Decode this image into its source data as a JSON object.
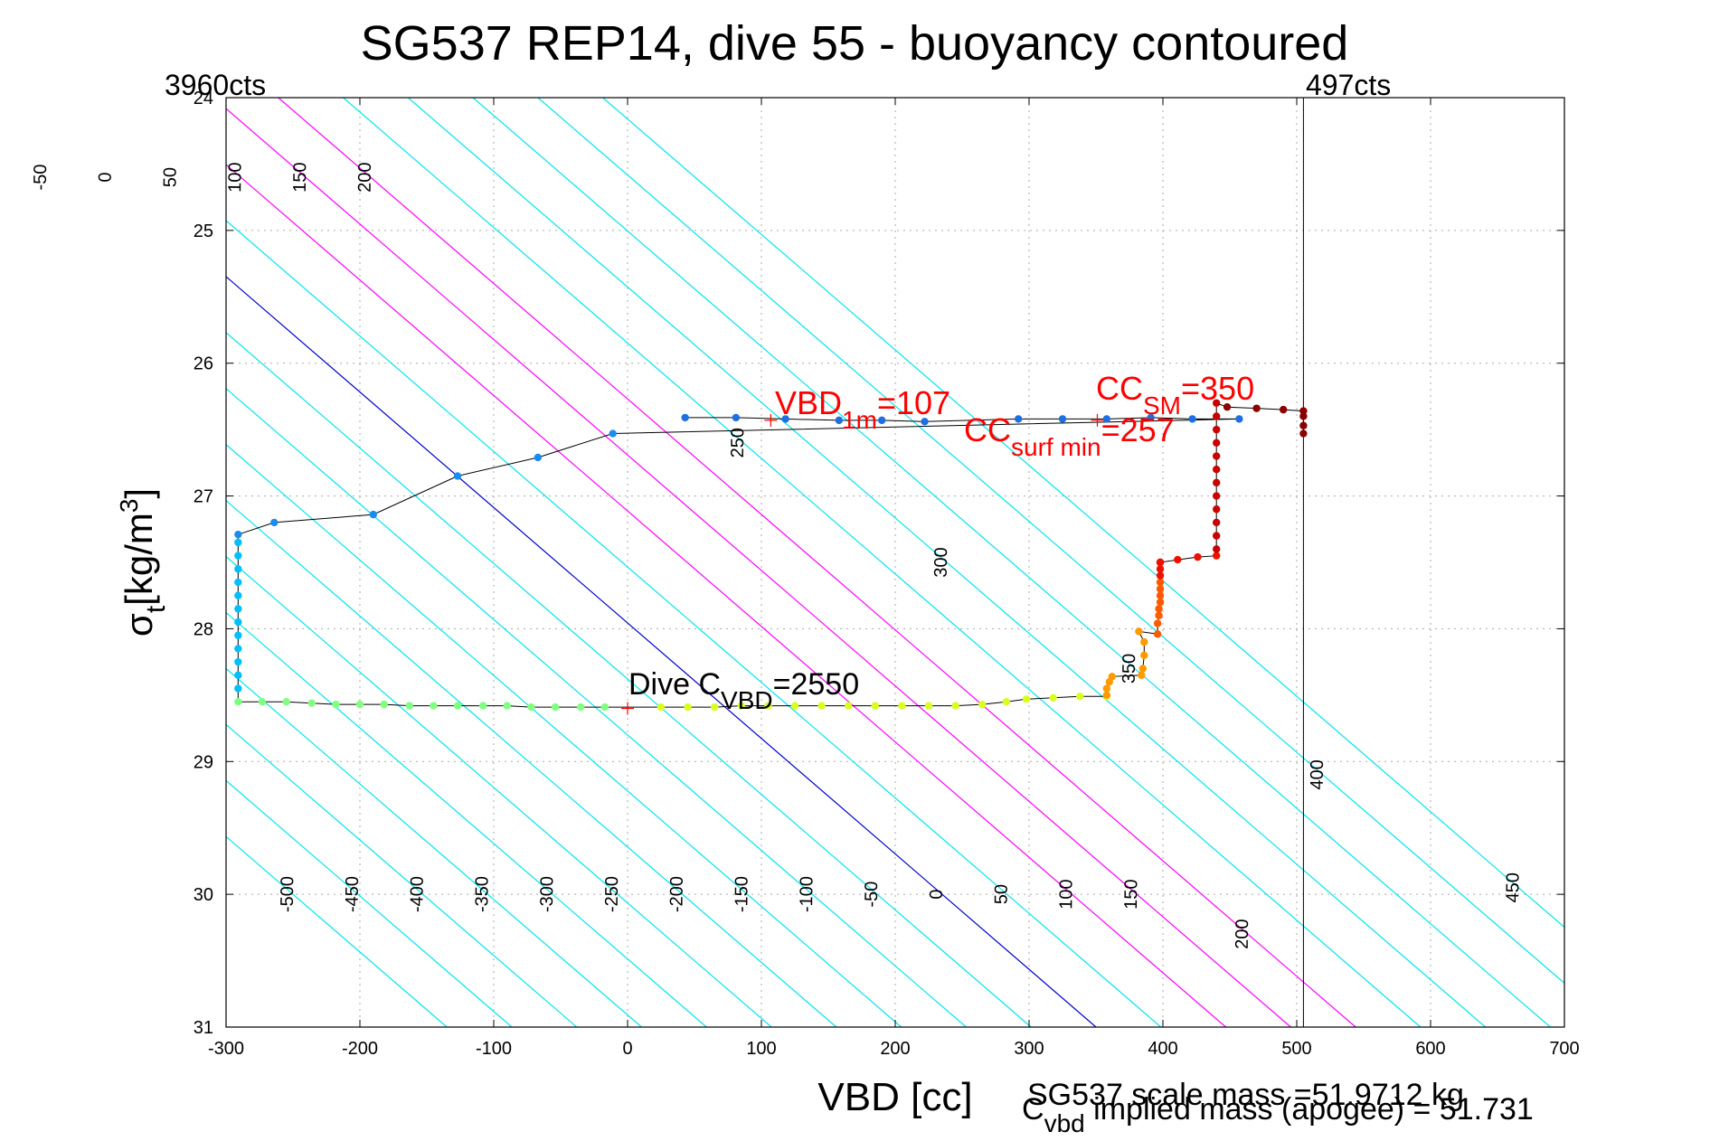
{
  "chart_data": {
    "type": "scatter",
    "title": "SG537 REP14, dive 55 - buoyancy contoured",
    "xlabel": "VBD [cc]",
    "ylabel_main": "σ",
    "ylabel_sub": "t",
    "ylabel_unit": "[kg/m",
    "ylabel_sup": "3",
    "ylabel_close": "]",
    "xlim": [
      -300,
      700
    ],
    "ylim": [
      24,
      31
    ],
    "y_reversed": true,
    "grid": true,
    "x_ticks": [
      -300,
      -200,
      -100,
      0,
      100,
      200,
      300,
      400,
      500,
      600,
      700
    ],
    "y_ticks": [
      24,
      25,
      26,
      27,
      28,
      29,
      30,
      31
    ],
    "corner_labels": {
      "left": "3960cts",
      "right": "497cts"
    },
    "vertical_line_x": 505,
    "colors": {
      "contour": "#00e5ee",
      "zero_contour": "#0000cc",
      "magenta_contour": "#ff00ff",
      "annotation": "#ff0000",
      "grid": "#aaaaaa"
    },
    "contour_levels": [
      -500,
      -450,
      -400,
      -350,
      -300,
      -250,
      -200,
      -150,
      -100,
      -50,
      0,
      50,
      100,
      150,
      200,
      250,
      300,
      350,
      400,
      450
    ],
    "zero_contour_level": 0,
    "magenta_contour_levels": [
      100,
      150,
      200
    ],
    "top_contour_labels": [
      -500,
      -450,
      -400,
      -350,
      -300,
      -250,
      -200,
      -150,
      -100,
      -50,
      0,
      50,
      100,
      150,
      200
    ],
    "bottom_contour_labels": [
      -500,
      -450,
      -400,
      -350,
      -300,
      -250,
      -200,
      -150,
      -100,
      -50,
      0,
      50,
      100,
      150,
      200
    ],
    "right_contour_labels": [
      250,
      300,
      350,
      400,
      450
    ],
    "annotations": {
      "vbd1m": {
        "main": "VBD",
        "sub": "1m",
        "rest": "=107",
        "x": 107,
        "y": 26.43
      },
      "ccsm": {
        "main": "CC",
        "sub": "SM",
        "rest": "=350",
        "x": 440,
        "y": 26.36
      },
      "ccsurf": {
        "main": "CC",
        "sub": "surf min",
        "rest": "=257",
        "x": 351,
        "y": 26.43
      },
      "divec": {
        "main": "Dive C",
        "sub": "VBD",
        "rest": "=2550",
        "x": 0,
        "y": 28.6
      }
    },
    "footer": {
      "scale_mass": "SG537 scale mass =51.9712 kg",
      "implied_main": "C",
      "implied_sub": "vbd",
      "implied_rest": " implied mass (apogee) = 51.731"
    },
    "series": [
      {
        "color": "#1e6fe0",
        "x": [
          43,
          81,
          118,
          158,
          190,
          222,
          292,
          325,
          358,
          391,
          422,
          457
        ],
        "y": [
          26.41,
          26.41,
          26.42,
          26.43,
          26.43,
          26.44,
          26.42,
          26.42,
          26.42,
          26.41,
          26.42,
          26.42
        ]
      },
      {
        "color": "#1a8cf0",
        "x": [
          -11,
          -67,
          -127,
          -190,
          -264,
          -291
        ],
        "y": [
          26.53,
          26.71,
          26.85,
          27.14,
          27.2,
          27.29
        ]
      },
      {
        "color": "#00bfff",
        "x": [
          -291,
          -291,
          -291,
          -291,
          -291,
          -291,
          -291,
          -291,
          -291,
          -291,
          -291,
          -291
        ],
        "y": [
          27.35,
          27.45,
          27.55,
          27.65,
          27.75,
          27.85,
          27.95,
          28.05,
          28.15,
          28.25,
          28.35,
          28.45
        ]
      },
      {
        "color": "#80ff80",
        "x": [
          -291,
          -273,
          -255,
          -236,
          -218,
          -200,
          -182,
          -163,
          -145,
          -127,
          -108,
          -90,
          -72,
          -54,
          -35,
          -17
        ],
        "y": [
          28.55,
          28.55,
          28.55,
          28.56,
          28.57,
          28.57,
          28.57,
          28.58,
          28.58,
          28.58,
          28.58,
          28.58,
          28.59,
          28.59,
          28.59,
          28.59
        ]
      },
      {
        "color": "#d8ff20",
        "x": [
          25,
          45,
          65,
          85,
          105,
          125,
          145,
          165,
          185,
          205,
          225,
          245,
          265,
          283,
          298,
          318,
          338,
          358
        ],
        "y": [
          28.59,
          28.59,
          28.59,
          28.58,
          28.58,
          28.58,
          28.58,
          28.58,
          28.58,
          28.58,
          28.58,
          28.58,
          28.57,
          28.55,
          28.53,
          28.52,
          28.51,
          28.51
        ]
      },
      {
        "color": "#ff9a00",
        "x": [
          358,
          358,
          360,
          362,
          384,
          385,
          386,
          386,
          382
        ],
        "y": [
          28.5,
          28.45,
          28.4,
          28.36,
          28.35,
          28.3,
          28.2,
          28.1,
          28.02
        ]
      },
      {
        "color": "#ff5a00",
        "x": [
          396,
          396,
          397,
          397,
          398,
          398,
          398,
          398
        ],
        "y": [
          28.04,
          27.96,
          27.9,
          27.85,
          27.8,
          27.75,
          27.7,
          27.65
        ]
      },
      {
        "color": "#ee1100",
        "x": [
          398,
          398,
          398,
          398,
          398,
          411,
          426,
          440
        ],
        "y": [
          27.6,
          27.55,
          27.5,
          27.5,
          27.5,
          27.48,
          27.46,
          27.45
        ]
      },
      {
        "color": "#cc0000",
        "x": [
          440,
          440,
          440,
          440,
          440,
          440,
          440,
          440,
          440,
          440,
          440,
          440
        ],
        "y": [
          27.4,
          27.3,
          27.2,
          27.1,
          27.0,
          26.9,
          26.8,
          26.7,
          26.6,
          26.5,
          26.4,
          26.3
        ]
      },
      {
        "color": "#8b0000",
        "x": [
          448,
          470,
          490,
          505,
          505,
          505,
          505
        ],
        "y": [
          26.33,
          26.34,
          26.35,
          26.36,
          26.4,
          26.47,
          26.53
        ]
      }
    ]
  }
}
